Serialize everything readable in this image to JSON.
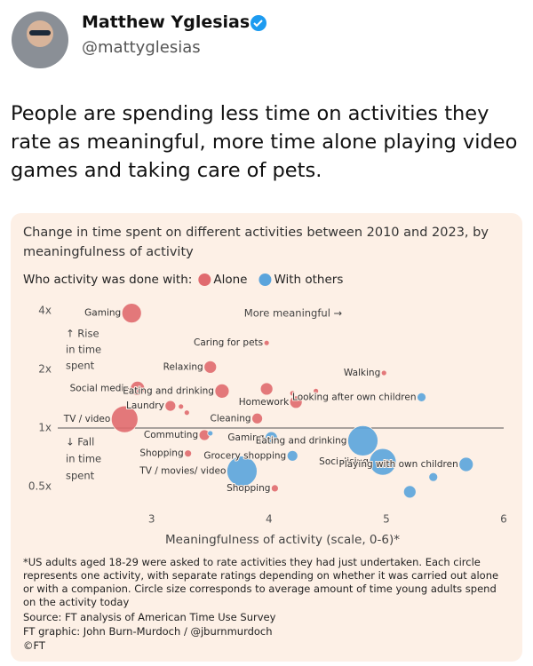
{
  "tweet": {
    "name": "Matthew Yglesias",
    "handle": "@mattyglesias",
    "text": "People are spending less time on activities they rate as meaningful, more time alone playing video games and taking care of pets."
  },
  "chart_data": {
    "type": "scatter",
    "title": "Change in time spent on different activities between 2010 and 2023, by meaningfulness of activity",
    "legend_title": "Who activity was done with:",
    "x_label": "Meaningfulness of activity (scale, 0-6)*",
    "annotations": {
      "more": "More meaningful →",
      "rise": [
        "↑ Rise",
        "in time",
        "spent"
      ],
      "fall": [
        "↓ Fall",
        "in time",
        "spent"
      ]
    },
    "xlim": [
      2.2,
      6
    ],
    "xticks": [
      3,
      4,
      5,
      6
    ],
    "ylim": [
      0.45,
      4.5
    ],
    "log_scale": true,
    "hline": 1,
    "yticks": [
      {
        "value": 0.5,
        "label": "0.5x"
      },
      {
        "value": 1,
        "label": "1x"
      },
      {
        "value": 2,
        "label": "2x"
      },
      {
        "value": 4,
        "label": "4x"
      }
    ],
    "series": [
      {
        "name": "Alone",
        "color": "#e06a6e",
        "labels": [
          "Gaming",
          "Relaxing",
          "Social media",
          "Eating and drinking",
          "Laundry",
          null,
          null,
          "TV / video",
          "Caring for pets",
          "Homework",
          null,
          null,
          null,
          "Walking",
          "Cleaning",
          "Commuting",
          "Shopping",
          "Shopping"
        ],
        "x": [
          2.83,
          3.5,
          2.88,
          3.6,
          3.16,
          3.25,
          3.3,
          2.77,
          3.98,
          4.23,
          3.98,
          4.2,
          4.4,
          4.98,
          3.9,
          3.45,
          3.31,
          4.05
        ],
        "y": [
          3.9,
          2.06,
          1.6,
          1.55,
          1.3,
          1.29,
          1.2,
          1.11,
          2.74,
          1.36,
          1.59,
          1.51,
          1.55,
          1.92,
          1.12,
          0.92,
          0.74,
          0.49
        ],
        "sizes": [
          121,
          49,
          64,
          64,
          36,
          9,
          9,
          225,
          9,
          49,
          49,
          9,
          9,
          9,
          36,
          36,
          16,
          16
        ]
      },
      {
        "name": "With others",
        "color": "#5aa4dc",
        "labels": [
          "Gaming",
          "Eating and drinking",
          "Socialising",
          "TV / movies/ video",
          "Looking after own children",
          null,
          "Playing with own children",
          null,
          null,
          "Grocery shopping",
          null
        ],
        "x": [
          4.02,
          4.8,
          4.97,
          3.77,
          5.3,
          4.86,
          5.68,
          5.4,
          5.2,
          4.2,
          3.5
        ],
        "y": [
          0.89,
          0.86,
          0.67,
          0.6,
          1.44,
          1.44,
          0.65,
          0.56,
          0.47,
          0.72,
          0.94
        ],
        "sizes": [
          49,
          289,
          225,
          289,
          25,
          9,
          64,
          25,
          49,
          36,
          9
        ]
      }
    ],
    "footnote": "*US adults aged 18-29 were asked to rate activities they had just undertaken. Each circle represents one activity, with separate ratings depending on whether it was carried out alone or with a companion. Circle size corresponds to average amount of time young adults spend on the activity today",
    "source": "Source: FT analysis of American Time Use Survey",
    "credit": "FT graphic: John Burn-Murdoch / @jburnmurdoch",
    "copyright": "©FT"
  }
}
